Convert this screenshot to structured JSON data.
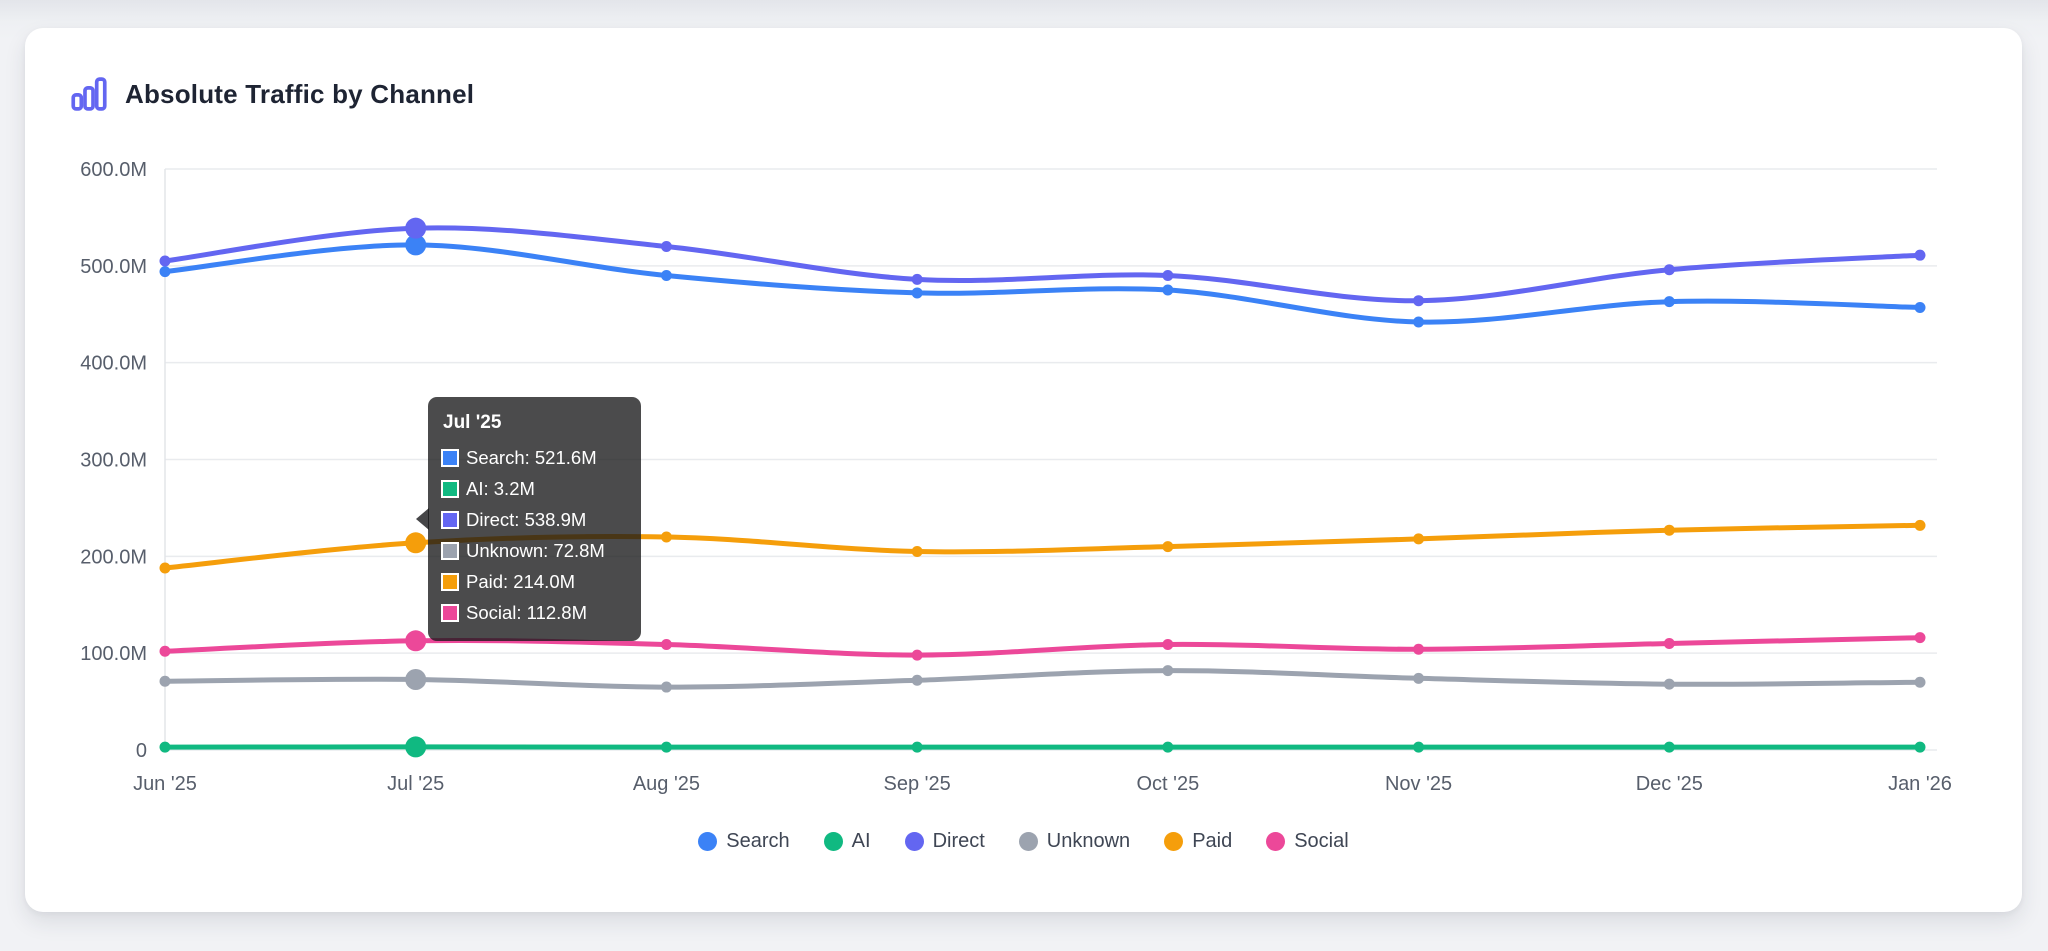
{
  "header": {
    "title": "Absolute Traffic by Channel"
  },
  "colors": {
    "accent": "#6366f1",
    "card_background": "#ffffff",
    "page_background": "#f1f2f5",
    "grid": "#e9ebee",
    "axis_line": "#e3e5e9",
    "axis_text": "#575e6b",
    "title_text": "#1e2433",
    "tooltip_background": "rgba(24,24,26,0.78)"
  },
  "chart_data": {
    "type": "line",
    "title": "Absolute Traffic by Channel",
    "xlabel": "",
    "ylabel": "",
    "ylim": [
      0,
      600000000
    ],
    "grid": true,
    "legend_position": "bottom",
    "smooth": true,
    "unit": "M",
    "categories": [
      "Jun '25",
      "Jul '25",
      "Aug '25",
      "Sep '25",
      "Oct '25",
      "Nov '25",
      "Dec '25",
      "Jan '26"
    ],
    "yticks": [
      {
        "label": "600.0M",
        "value": 600
      },
      {
        "label": "500.0M",
        "value": 500
      },
      {
        "label": "400.0M",
        "value": 400
      },
      {
        "label": "300.0M",
        "value": 300
      },
      {
        "label": "200.0M",
        "value": 200
      },
      {
        "label": "100.0M",
        "value": 100
      },
      {
        "label": "0",
        "value": 0
      }
    ],
    "series": [
      {
        "name": "Search",
        "color": "#3b82f6",
        "values_millions": [
          494,
          521.6,
          490,
          472,
          475,
          442,
          463,
          457
        ]
      },
      {
        "name": "AI",
        "color": "#10b981",
        "values_millions": [
          3,
          3.2,
          3,
          3,
          3,
          3,
          3,
          3
        ]
      },
      {
        "name": "Direct",
        "color": "#6366f1",
        "values_millions": [
          505,
          538.9,
          520,
          486,
          490,
          464,
          496,
          511
        ]
      },
      {
        "name": "Unknown",
        "color": "#9ca3af",
        "values_millions": [
          71,
          72.8,
          65,
          72,
          82,
          74,
          68,
          70
        ]
      },
      {
        "name": "Paid",
        "color": "#f59e0b",
        "values_millions": [
          188,
          214.0,
          220,
          205,
          210,
          218,
          227,
          232
        ]
      },
      {
        "name": "Social",
        "color": "#ec4899",
        "values_millions": [
          102,
          112.8,
          109,
          98,
          109,
          104,
          110,
          116
        ]
      }
    ],
    "highlighted_category_index": 1,
    "highlighted_category": "Jul '25"
  },
  "tooltip": {
    "title": "Jul '25",
    "rows": [
      {
        "label": "Search",
        "value": "521.6M",
        "color": "#3b82f6"
      },
      {
        "label": "AI",
        "value": "3.2M",
        "color": "#10b981"
      },
      {
        "label": "Direct",
        "value": "538.9M",
        "color": "#6366f1"
      },
      {
        "label": "Unknown",
        "value": "72.8M",
        "color": "#9ca3af"
      },
      {
        "label": "Paid",
        "value": "214.0M",
        "color": "#f59e0b"
      },
      {
        "label": "Social",
        "value": "112.8M",
        "color": "#ec4899"
      }
    ]
  },
  "legend": {
    "items": [
      {
        "label": "Search",
        "color": "#3b82f6"
      },
      {
        "label": "AI",
        "color": "#10b981"
      },
      {
        "label": "Direct",
        "color": "#6366f1"
      },
      {
        "label": "Unknown",
        "color": "#9ca3af"
      },
      {
        "label": "Paid",
        "color": "#f59e0b"
      },
      {
        "label": "Social",
        "color": "#ec4899"
      }
    ]
  }
}
